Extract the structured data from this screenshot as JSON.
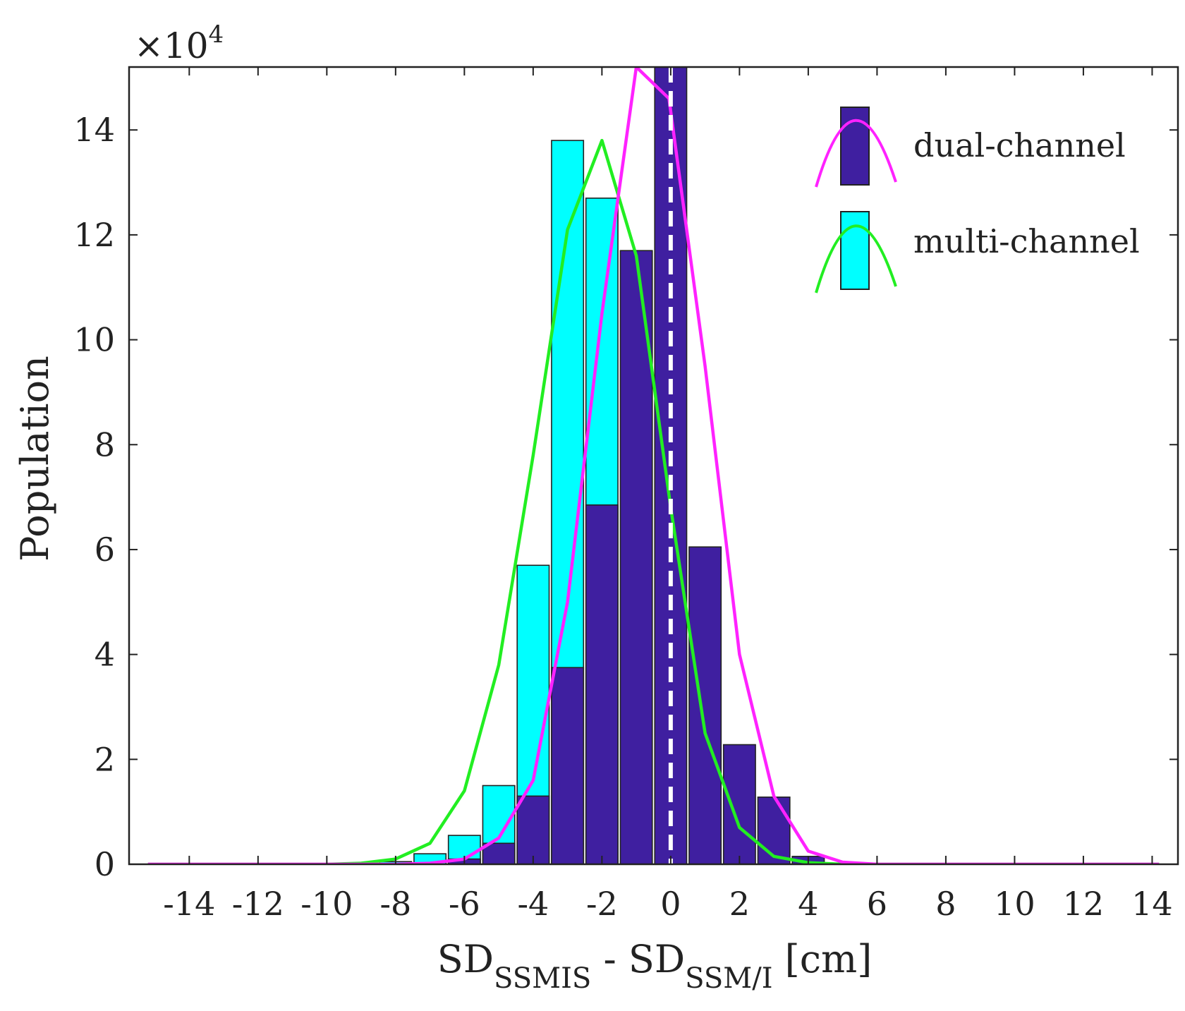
{
  "chart_data": {
    "type": "bar",
    "title": "",
    "multiplier_label": "×10",
    "multiplier_exponent": "4",
    "xlabel": {
      "main1": "SD",
      "sub1": "SSMIS",
      "dash": " - ",
      "main2": "SD",
      "sub2": "SSM/I",
      "units": " [cm]"
    },
    "ylabel": "Population",
    "xlim": [
      -15.75,
      14.75
    ],
    "ylim": [
      0,
      15.2
    ],
    "xticks": [
      -14,
      -12,
      -10,
      -8,
      -6,
      -4,
      -2,
      0,
      2,
      4,
      6,
      8,
      10,
      12,
      14
    ],
    "xtick_labels": [
      "-14",
      "-12",
      "-10",
      "-8",
      "-6",
      "-4",
      "-2",
      "0",
      "2",
      "4",
      "6",
      "8",
      "10",
      "12",
      "14"
    ],
    "yticks": [
      0,
      2,
      4,
      6,
      8,
      10,
      12,
      14
    ],
    "ytick_labels": [
      "0",
      "2",
      "4",
      "6",
      "8",
      "10",
      "12",
      "14"
    ],
    "bin_centers": [
      -8,
      -7,
      -6,
      -5,
      -4,
      -3,
      -2,
      -1,
      0,
      1,
      2,
      3,
      4
    ],
    "bin_width": 0.93,
    "series": [
      {
        "name": "multi-channel",
        "bar_color": "#00FFFF",
        "curve_color": "#22EE22",
        "bars": [
          0.05,
          0.2,
          0.55,
          1.5,
          5.7,
          13.8,
          12.7,
          0,
          0,
          0,
          0,
          0,
          0
        ],
        "curve_x": [
          -15.2,
          -10,
          -9,
          -8,
          -7,
          -6,
          -5,
          -4,
          -3,
          -2,
          -1,
          0,
          1,
          2,
          3,
          4,
          5,
          6,
          8,
          14.2
        ],
        "curve_y": [
          0,
          0,
          0.02,
          0.1,
          0.4,
          1.4,
          3.8,
          7.8,
          12.1,
          13.8,
          11.6,
          6.8,
          2.5,
          0.7,
          0.15,
          0.03,
          0,
          0,
          0,
          0
        ]
      },
      {
        "name": "dual-channel",
        "bar_color": "#3F1FA0",
        "curve_color": "#FF22FF",
        "bars": [
          0,
          0,
          0.1,
          0.4,
          1.3,
          3.75,
          6.85,
          11.7,
          15.2,
          6.05,
          2.28,
          1.28,
          0.15
        ],
        "curve_x": [
          -15.2,
          -8,
          -7,
          -6,
          -5,
          -4,
          -3,
          -2,
          -1,
          -0.05,
          1,
          2,
          3,
          4,
          5,
          6,
          8,
          10,
          14.2
        ],
        "curve_y": [
          0,
          0,
          0.02,
          0.1,
          0.5,
          1.6,
          5.0,
          10.5,
          15.2,
          14.6,
          9.5,
          4.0,
          1.3,
          0.25,
          0.04,
          0,
          0,
          0,
          0
        ]
      }
    ],
    "reference_line_x": 0,
    "reference_line_style": "dashed white",
    "legend": {
      "position": "top-right",
      "entries": [
        "dual-channel",
        "multi-channel"
      ]
    }
  }
}
